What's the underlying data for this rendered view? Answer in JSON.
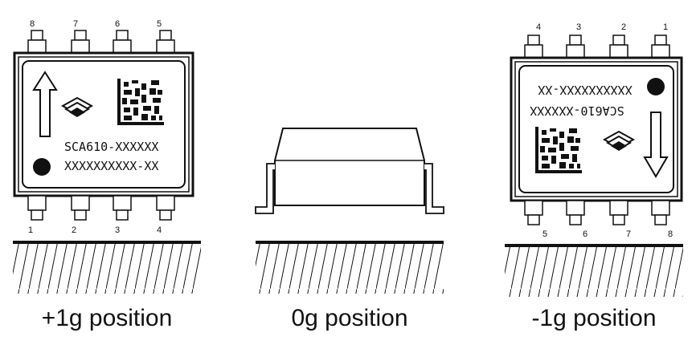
{
  "panels": [
    {
      "id": "plus1g",
      "caption": "+1g position",
      "pin_numbers_top": [
        "8",
        "7",
        "6",
        "5"
      ],
      "pin_numbers_bottom": [
        "1",
        "2",
        "3",
        "4"
      ],
      "marking_line1": "SCA610-XXXXXX",
      "marking_line2": "XXXXXXXXXX-XX",
      "arrow_direction": "up"
    },
    {
      "id": "zerog",
      "caption": "0g position"
    },
    {
      "id": "minus1g",
      "caption": "-1g position",
      "pin_numbers_top": [
        "4",
        "3",
        "2",
        "1"
      ],
      "pin_numbers_bottom": [
        "5",
        "6",
        "7",
        "8"
      ],
      "marking_line1": "SCA610-XXXXXX",
      "marking_line2": "XXXXXXXXXX-XX",
      "arrow_direction": "down",
      "text_rotated_180": true
    }
  ],
  "colors": {
    "ink": "#111111",
    "background": "#ffffff"
  }
}
